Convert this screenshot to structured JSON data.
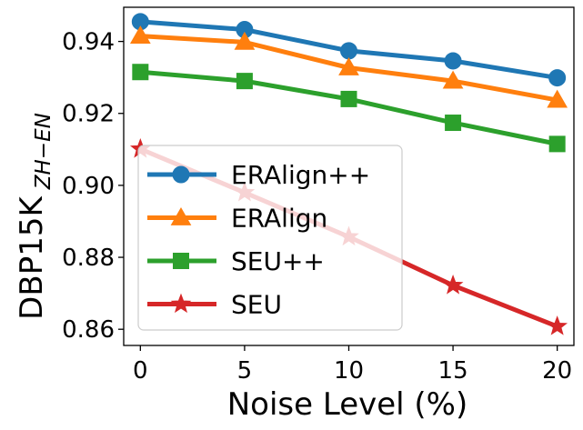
{
  "chart_data": {
    "type": "line",
    "title": "",
    "xlabel": "Noise Level (%)",
    "ylabel_main": "DBP15K",
    "ylabel_sub": "ZH−EN",
    "x": [
      0,
      5,
      10,
      15,
      20
    ],
    "xlim": [
      -0.8,
      20.8
    ],
    "ylim": [
      0.8555,
      0.9495
    ],
    "xticks": [
      0,
      5,
      10,
      15,
      20
    ],
    "yticks": [
      0.86,
      0.88,
      0.9,
      0.92,
      0.94
    ],
    "xtick_labels": [
      "0",
      "5",
      "10",
      "15",
      "20"
    ],
    "ytick_labels": [
      "0.86",
      "0.88",
      "0.90",
      "0.92",
      "0.94"
    ],
    "grid": false,
    "legend_position": "center-left",
    "series": [
      {
        "name": "ERAlign++",
        "color": "#1f77b4",
        "marker": "circle",
        "values": [
          0.9455,
          0.9433,
          0.9374,
          0.9346,
          0.9299
        ]
      },
      {
        "name": "ERAlign",
        "color": "#ff7f0e",
        "marker": "triangle",
        "values": [
          0.9415,
          0.9398,
          0.9327,
          0.929,
          0.9237
        ]
      },
      {
        "name": "SEU++",
        "color": "#2ca02c",
        "marker": "square",
        "values": [
          0.9315,
          0.929,
          0.924,
          0.9174,
          0.9115
        ]
      },
      {
        "name": "SEU",
        "color": "#d62728",
        "marker": "star",
        "values": [
          0.9101,
          0.898,
          0.8857,
          0.8722,
          0.8608
        ]
      }
    ]
  }
}
